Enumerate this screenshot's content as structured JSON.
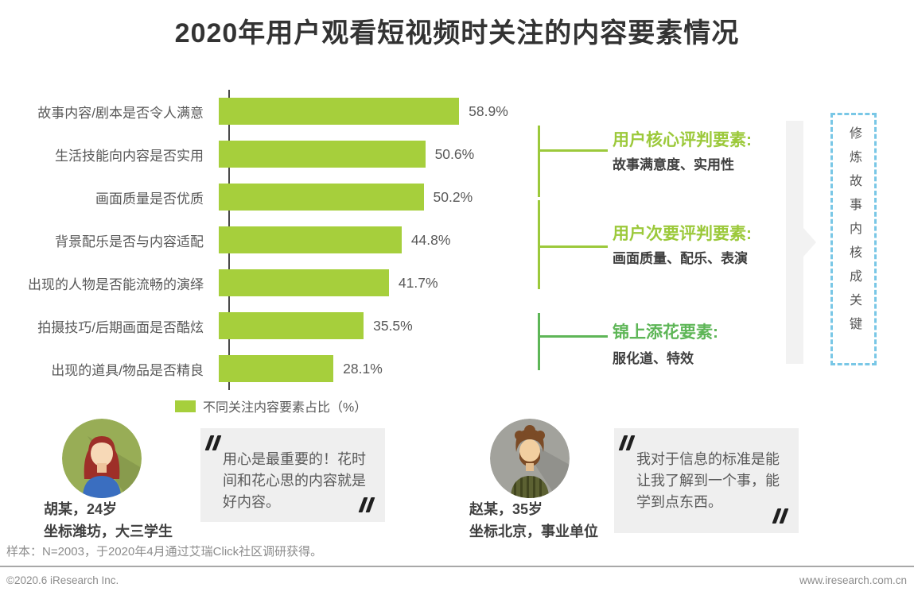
{
  "title": "2020年用户观看短视频时关注的内容要素情况",
  "chart_data": {
    "type": "bar",
    "orientation": "horizontal",
    "title": "2020年用户观看短视频时关注的内容要素情况",
    "categories": [
      "故事内容/剧本是否令人满意",
      "生活技能向内容是否实用",
      "画面质量是否优质",
      "背景配乐是否与内容适配",
      "出现的人物是否能流畅的演绎",
      "拍摄技巧/后期画面是否酷炫",
      "出现的道具/物品是否精良"
    ],
    "values": [
      58.9,
      50.6,
      50.2,
      44.8,
      41.7,
      35.5,
      28.1
    ],
    "value_labels": [
      "58.9%",
      "50.6%",
      "50.2%",
      "44.8%",
      "41.7%",
      "35.5%",
      "28.1%"
    ],
    "xlim": [
      0,
      60
    ],
    "grid": false,
    "legend": "不同关注内容要素占比（%）",
    "bar_color": "#a6cf3c"
  },
  "annotations": {
    "groups": [
      {
        "heading": "用户核心评判要素:",
        "detail": "故事满意度、实用性",
        "color": "#9cc93b"
      },
      {
        "heading": "用户次要评判要素:",
        "detail": "画面质量、配乐、表演",
        "color": "#9cc93b"
      },
      {
        "heading": "锦上添花要素:",
        "detail": "服化道、特效",
        "color": "#5eb657"
      }
    ],
    "callout": {
      "text": "修炼故事内核成关键",
      "border_color": "#79c7e6"
    }
  },
  "personas": [
    {
      "name_line1": "胡某，24岁",
      "name_line2": "坐标潍坊，大三学生",
      "quote": "用心是最重要的！花时间和花心思的内容就是好内容。"
    },
    {
      "name_line1": "赵某，35岁",
      "name_line2": "坐标北京，事业单位",
      "quote": "我对于信息的标准是能让我了解到一个事，能学到点东西。"
    }
  ],
  "footer": {
    "sample_note": "样本：N=2003，于2020年4月通过艾瑞Click社区调研获得。",
    "copyright": "©2020.6 iResearch Inc.",
    "website": "www.iresearch.com.cn"
  }
}
